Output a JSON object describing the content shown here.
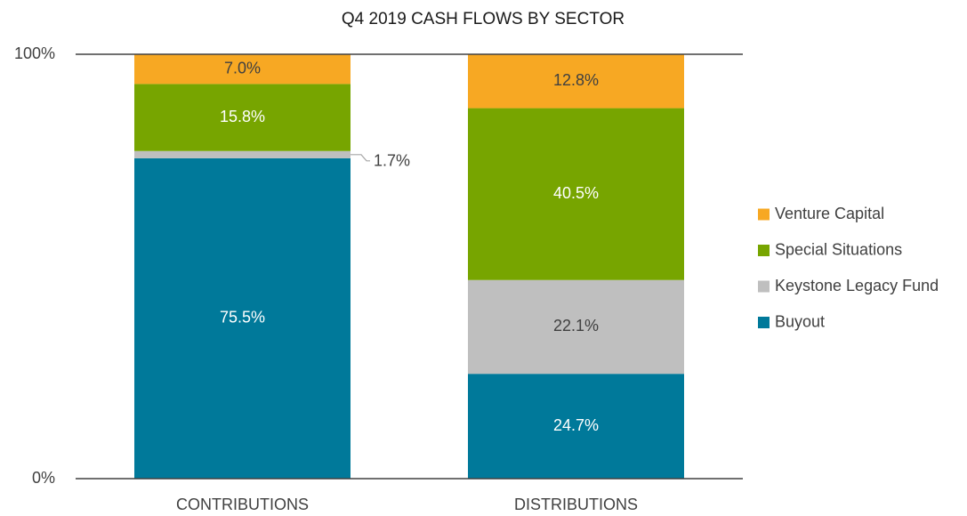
{
  "chart_data": {
    "type": "stacked_bar",
    "title": "Q4 2019 CASH FLOWS BY SECTOR",
    "categories": [
      "CONTRIBUTIONS",
      "DISTRIBUTIONS"
    ],
    "series": [
      {
        "name": "Buyout",
        "color": "#00799a",
        "values": [
          75.5,
          24.7
        ],
        "value_labels": [
          "75.5%",
          "24.7%"
        ]
      },
      {
        "name": "Keystone Legacy Fund",
        "color": "#bfbfbf",
        "values": [
          1.7,
          22.1
        ],
        "value_labels": [
          "1.7%",
          "22.1%"
        ]
      },
      {
        "name": "Special Situations",
        "color": "#77a500",
        "values": [
          15.8,
          40.5
        ],
        "value_labels": [
          "15.8%",
          "40.5%"
        ]
      },
      {
        "name": "Venture Capital",
        "color": "#f7a823",
        "values": [
          7.0,
          12.8
        ],
        "value_labels": [
          "7.0%",
          "12.8%"
        ]
      }
    ],
    "ylim": [
      0,
      100
    ],
    "yticks": [
      {
        "value": 0,
        "label": "0%"
      },
      {
        "value": 100,
        "label": "100%"
      }
    ],
    "grid": true,
    "legend": "right"
  }
}
